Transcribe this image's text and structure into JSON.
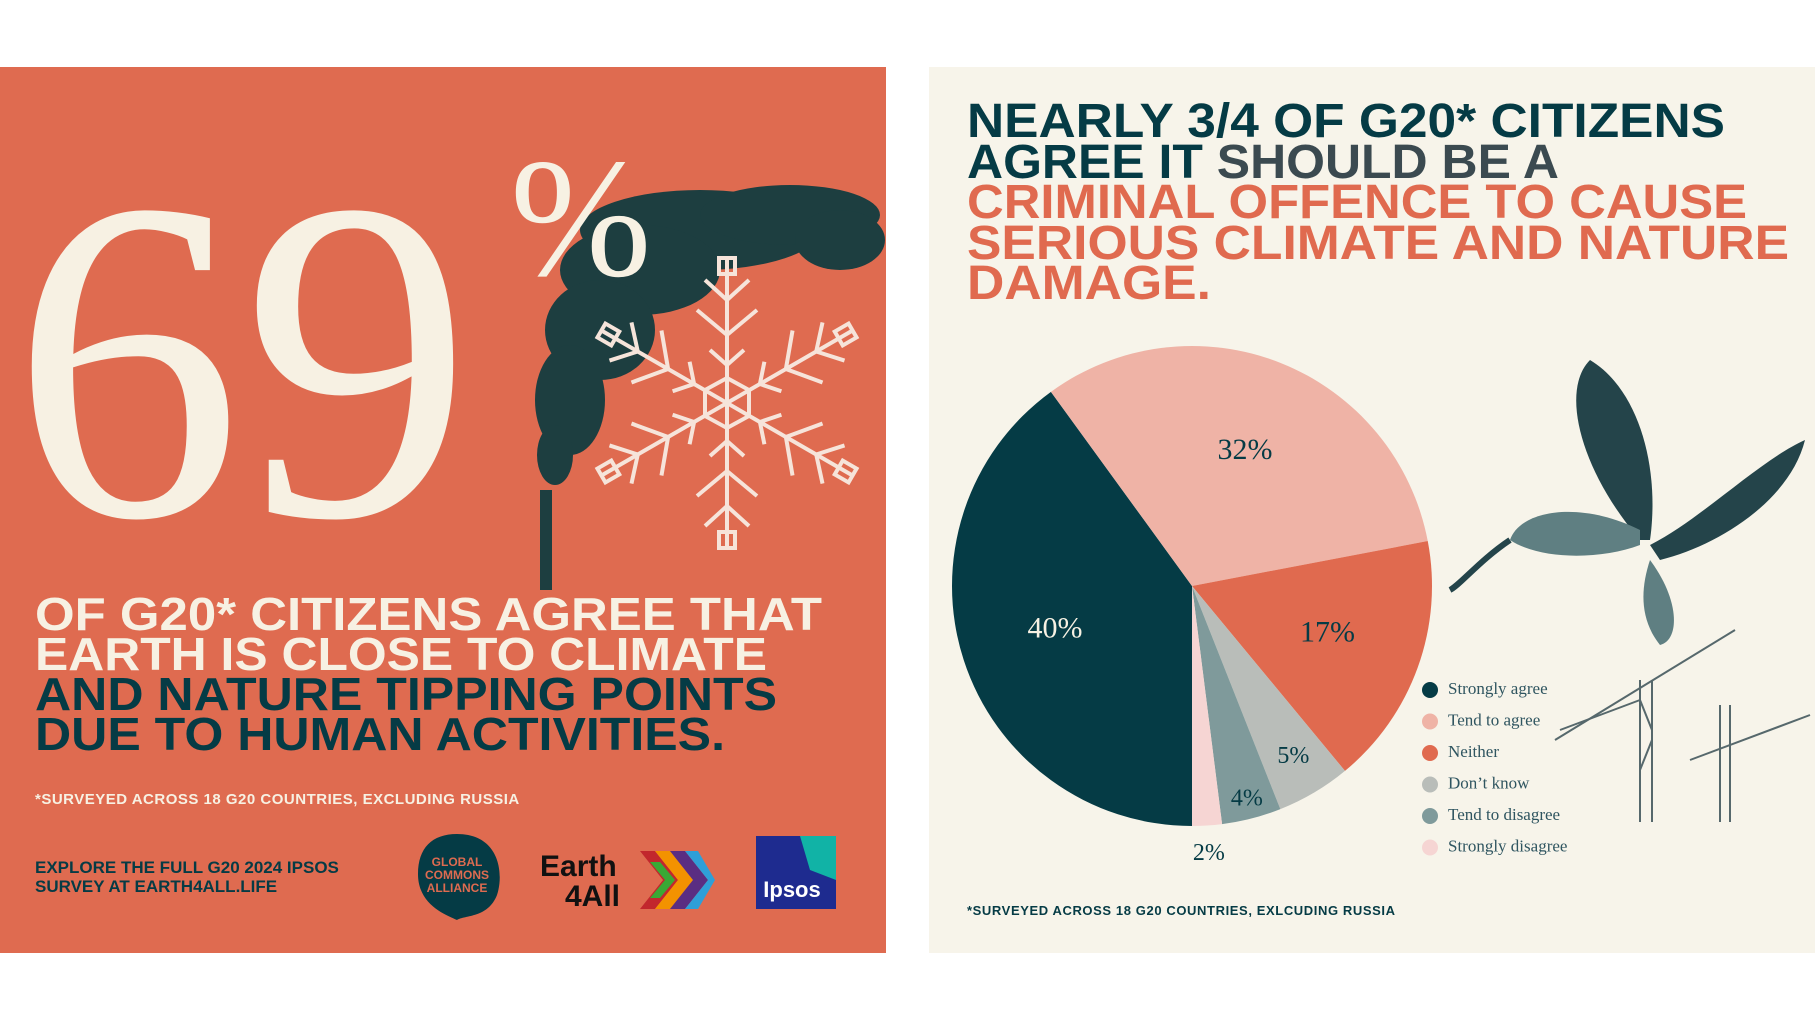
{
  "left_panel": {
    "big_number": "69",
    "unit": "%",
    "headline": [
      "OF G20* CITIZENS AGREE  THAT",
      "EARTH IS CLOSE TO CLIMATE",
      "AND NATURE TIPPING POINTS",
      "DUE TO HUMAN ACTIVITIES."
    ],
    "footnote": "*SURVEYED ACROSS 18 G20 COUNTRIES, EXCLUDING RUSSIA",
    "cta": [
      "EXPLORE THE FULL G20 2024 IPSOS",
      "SURVEY AT EARTH4ALL.LIFE"
    ],
    "logo_gca": [
      "GLOBAL",
      "COMMONS",
      "ALLIANCE"
    ],
    "logo_earth4all": [
      "Earth",
      "4All"
    ],
    "logo_ipsos": "Ipsos"
  },
  "chart_data": {
    "type": "pie",
    "title": [
      "NEARLY 3/4 OF G20* CITIZENS",
      "AGREE IT",
      "SHOULD BE A",
      "CRIMINAL OFFENCE TO CAUSE",
      "SERIOUS CLIMATE AND NATURE",
      "DAMAGE."
    ],
    "categories": [
      "Strongly agree",
      "Tend to agree",
      "Neither",
      "Don’t know",
      "Tend to disagree",
      "Strongly disagree"
    ],
    "values": [
      40,
      32,
      17,
      5,
      4,
      2
    ],
    "value_labels": [
      "40%",
      "32%",
      "17%",
      "5%",
      "4%",
      "2%"
    ],
    "colors": [
      "#053b45",
      "#efb3a6",
      "#e06a4f",
      "#b9bdb9",
      "#7f9a9b",
      "#f6d5d3"
    ],
    "legend": "right",
    "footnote": "*SURVEYED ACROSS 18 G20 COUNTRIES, EXLCUDING RUSSIA"
  }
}
